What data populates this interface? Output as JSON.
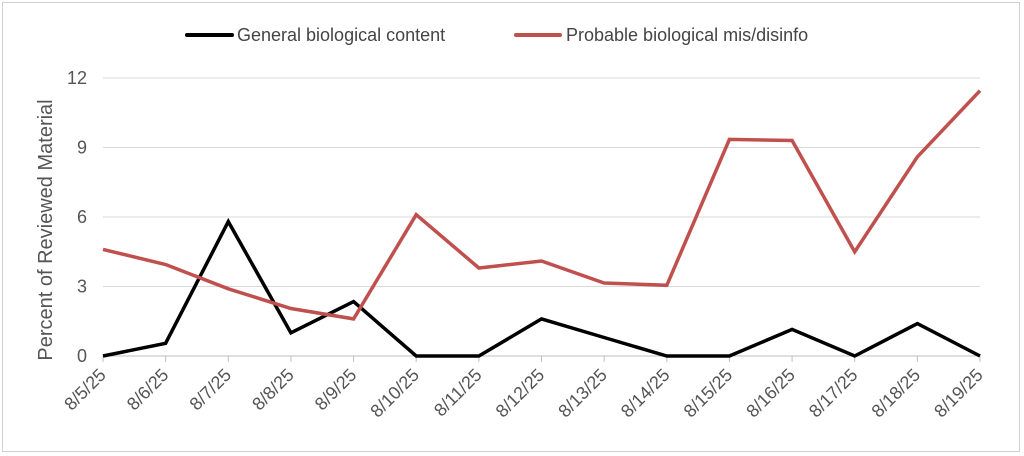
{
  "chart_data": {
    "type": "line",
    "title": "",
    "xlabel": "",
    "ylabel": "Percent of Reviewed Material",
    "ylim": [
      0,
      12
    ],
    "yticks": [
      0,
      3,
      6,
      9,
      12
    ],
    "grid": true,
    "legend_position": "top",
    "categories": [
      "8/5/25",
      "8/6/25",
      "8/7/25",
      "8/8/25",
      "8/9/25",
      "8/10/25",
      "8/11/25",
      "8/12/25",
      "8/13/25",
      "8/14/25",
      "8/15/25",
      "8/16/25",
      "8/17/25",
      "8/18/25",
      "8/19/25"
    ],
    "series": [
      {
        "name": "General biological content",
        "color": "#000000",
        "values": [
          0,
          0.55,
          5.8,
          1.0,
          2.35,
          0,
          0,
          1.6,
          0.8,
          0,
          0,
          1.15,
          0,
          1.4,
          0
        ]
      },
      {
        "name": "Probable biological mis/disinfo",
        "color": "#c0504d",
        "values": [
          4.6,
          3.95,
          2.9,
          2.05,
          1.6,
          6.1,
          3.8,
          4.1,
          3.15,
          3.05,
          9.35,
          9.3,
          4.5,
          8.6,
          11.45
        ]
      }
    ]
  }
}
